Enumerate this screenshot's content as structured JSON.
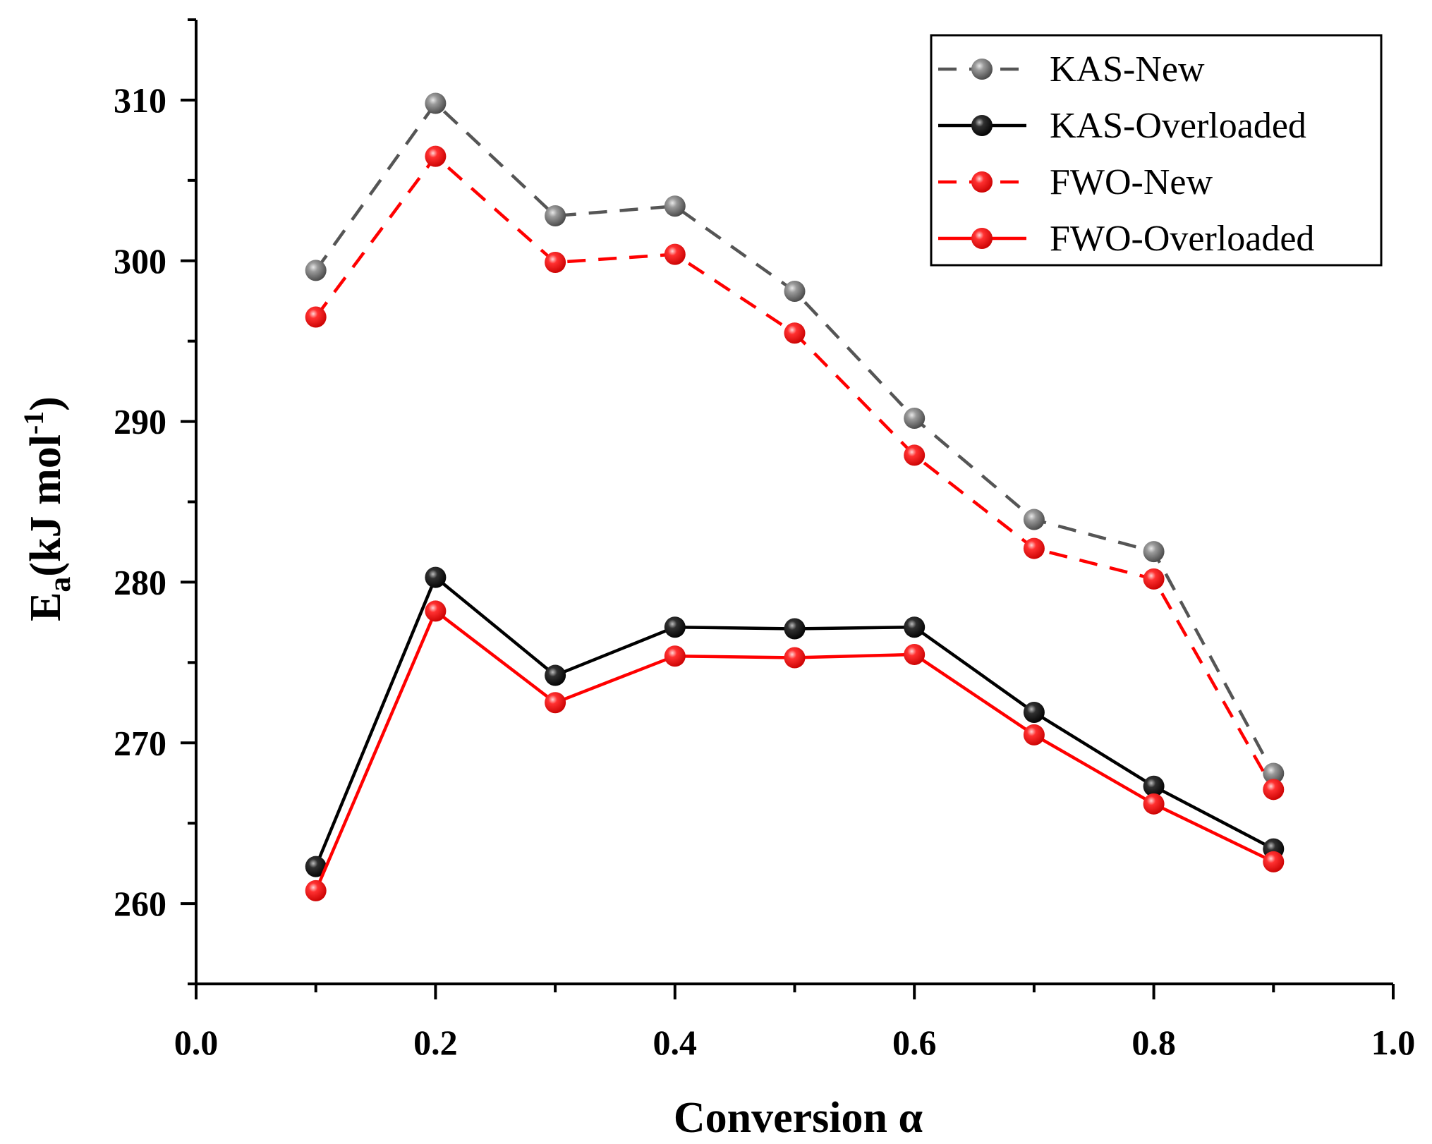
{
  "chart_data": {
    "type": "line",
    "title": "",
    "xlabel": "Conversion α",
    "ylabel_main": "E",
    "ylabel_sub": "a",
    "ylabel_unit": "(kJ mol",
    "ylabel_sup": "-1",
    "ylabel_close": ")",
    "xlim": [
      0.0,
      1.0
    ],
    "ylim": [
      255,
      315
    ],
    "xticks": [
      0.0,
      0.2,
      0.4,
      0.6,
      0.8,
      1.0
    ],
    "xtick_labels": [
      "0.0",
      "0.2",
      "0.4",
      "0.6",
      "0.8",
      "1.0"
    ],
    "xminor": [
      0.1,
      0.3,
      0.5,
      0.7,
      0.9
    ],
    "yticks": [
      260,
      270,
      280,
      290,
      300,
      310
    ],
    "ytick_labels": [
      "260",
      "270",
      "280",
      "290",
      "300",
      "310"
    ],
    "yminor": [
      255,
      265,
      275,
      285,
      295,
      305,
      315
    ],
    "grid": false,
    "legend_position": "top-right",
    "x": [
      0.1,
      0.2,
      0.3,
      0.4,
      0.5,
      0.6,
      0.7,
      0.8,
      0.9
    ],
    "series": [
      {
        "name": "KAS-New",
        "values": [
          299.4,
          309.8,
          302.8,
          303.4,
          298.1,
          290.2,
          283.9,
          281.9,
          268.1
        ],
        "line_color": "#555555",
        "marker_color": "#808080",
        "line_style": "dashed"
      },
      {
        "name": "KAS-Overloaded",
        "values": [
          262.3,
          280.3,
          274.2,
          277.2,
          277.1,
          277.2,
          271.9,
          267.3,
          263.4
        ],
        "line_color": "#000000",
        "marker_color": "#000000",
        "line_style": "solid"
      },
      {
        "name": "FWO-New",
        "values": [
          296.5,
          306.5,
          299.9,
          300.4,
          295.5,
          287.9,
          282.1,
          280.2,
          267.1
        ],
        "line_color": "#ff0000",
        "marker_color": "#ff0000",
        "line_style": "dashed"
      },
      {
        "name": "FWO-Overloaded",
        "values": [
          260.8,
          278.2,
          272.5,
          275.4,
          275.3,
          275.5,
          270.5,
          266.2,
          262.6
        ],
        "line_color": "#ff0000",
        "marker_color": "#ff0000",
        "line_style": "solid"
      }
    ]
  }
}
